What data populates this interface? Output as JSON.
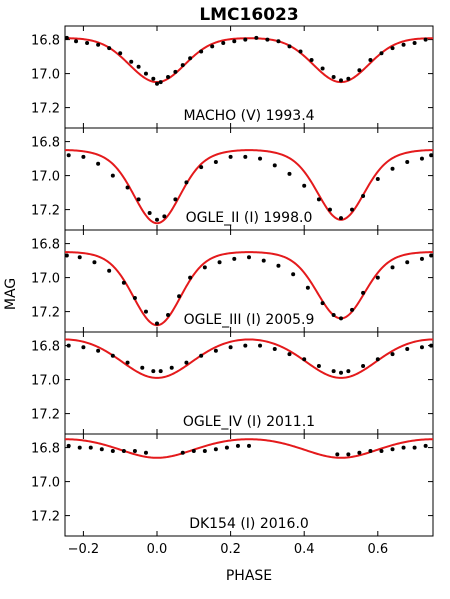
{
  "figure": {
    "title": "LMC16023",
    "xlabel": "PHASE",
    "ylabel": "MAG"
  },
  "chart_data": {
    "type": "scatter",
    "title": "LMC16023",
    "xlabel": "PHASE",
    "ylabel": "MAG",
    "xlim": [
      -0.25,
      0.75
    ],
    "ylim": [
      17.32,
      16.72
    ],
    "y_inverted": true,
    "x_ticks": [
      -0.2,
      0.0,
      0.2,
      0.4,
      0.6
    ],
    "x_tick_labels": [
      "−0.2",
      "0.0",
      "0.2",
      "0.4",
      "0.6"
    ],
    "y_ticks": [
      16.8,
      17.0,
      17.2
    ],
    "y_tick_labels": [
      "16.8",
      "17.0",
      "17.2"
    ],
    "model_color": "#e41a1c",
    "point_color": "#000000",
    "panels": [
      {
        "label": "MACHO (V) 1993.4",
        "model": {
          "base": 16.79,
          "primary_depth": 0.26,
          "secondary_depth": 0.26,
          "width": 0.075,
          "ellipsoidal": 0.0
        },
        "observations": [
          [
            -0.245,
            16.79
          ],
          [
            -0.22,
            16.81
          ],
          [
            -0.19,
            16.82
          ],
          [
            -0.16,
            16.83
          ],
          [
            -0.13,
            16.85
          ],
          [
            -0.1,
            16.88
          ],
          [
            -0.07,
            16.93
          ],
          [
            -0.05,
            16.96
          ],
          [
            -0.03,
            17.0
          ],
          [
            -0.01,
            17.03
          ],
          [
            0.0,
            17.06
          ],
          [
            0.01,
            17.05
          ],
          [
            0.03,
            17.02
          ],
          [
            0.05,
            16.99
          ],
          [
            0.07,
            16.95
          ],
          [
            0.09,
            16.91
          ],
          [
            0.12,
            16.87
          ],
          [
            0.15,
            16.84
          ],
          [
            0.18,
            16.82
          ],
          [
            0.21,
            16.81
          ],
          [
            0.24,
            16.8
          ],
          [
            0.27,
            16.79
          ],
          [
            0.3,
            16.8
          ],
          [
            0.33,
            16.81
          ],
          [
            0.36,
            16.84
          ],
          [
            0.39,
            16.87
          ],
          [
            0.42,
            16.92
          ],
          [
            0.45,
            16.97
          ],
          [
            0.48,
            17.02
          ],
          [
            0.5,
            17.04
          ],
          [
            0.52,
            17.03
          ],
          [
            0.55,
            16.98
          ],
          [
            0.58,
            16.92
          ],
          [
            0.61,
            16.88
          ],
          [
            0.64,
            16.85
          ],
          [
            0.67,
            16.83
          ],
          [
            0.7,
            16.82
          ],
          [
            0.73,
            16.8
          ]
        ]
      },
      {
        "label": "OGLE_II (I) 1998.0",
        "model": {
          "base": 16.88,
          "primary_depth": 0.37,
          "secondary_depth": 0.35,
          "width": 0.06,
          "ellipsoidal": 0.03
        },
        "observations": [
          [
            -0.24,
            16.88
          ],
          [
            -0.2,
            16.89
          ],
          [
            -0.16,
            16.93
          ],
          [
            -0.12,
            17.0
          ],
          [
            -0.08,
            17.07
          ],
          [
            -0.05,
            17.14
          ],
          [
            -0.02,
            17.22
          ],
          [
            0.0,
            17.26
          ],
          [
            0.02,
            17.24
          ],
          [
            0.05,
            17.14
          ],
          [
            0.08,
            17.04
          ],
          [
            0.12,
            16.95
          ],
          [
            0.16,
            16.92
          ],
          [
            0.2,
            16.89
          ],
          [
            0.24,
            16.89
          ],
          [
            0.28,
            16.9
          ],
          [
            0.32,
            16.94
          ],
          [
            0.36,
            16.99
          ],
          [
            0.4,
            17.06
          ],
          [
            0.44,
            17.14
          ],
          [
            0.47,
            17.2
          ],
          [
            0.5,
            17.25
          ],
          [
            0.53,
            17.2
          ],
          [
            0.56,
            17.12
          ],
          [
            0.6,
            17.02
          ],
          [
            0.64,
            16.96
          ],
          [
            0.68,
            16.92
          ],
          [
            0.72,
            16.9
          ],
          [
            0.745,
            16.88
          ]
        ]
      },
      {
        "label": "OGLE_III (I) 2005.9",
        "model": {
          "base": 16.87,
          "primary_depth": 0.39,
          "secondary_depth": 0.35,
          "width": 0.062,
          "ellipsoidal": 0.02
        },
        "observations": [
          [
            -0.245,
            16.87
          ],
          [
            -0.21,
            16.88
          ],
          [
            -0.17,
            16.91
          ],
          [
            -0.13,
            16.96
          ],
          [
            -0.09,
            17.03
          ],
          [
            -0.06,
            17.12
          ],
          [
            -0.03,
            17.2
          ],
          [
            0.0,
            17.27
          ],
          [
            0.03,
            17.22
          ],
          [
            0.06,
            17.11
          ],
          [
            0.09,
            17.0
          ],
          [
            0.13,
            16.94
          ],
          [
            0.17,
            16.91
          ],
          [
            0.21,
            16.89
          ],
          [
            0.25,
            16.88
          ],
          [
            0.29,
            16.9
          ],
          [
            0.33,
            16.93
          ],
          [
            0.37,
            16.98
          ],
          [
            0.41,
            17.06
          ],
          [
            0.45,
            17.15
          ],
          [
            0.48,
            17.22
          ],
          [
            0.5,
            17.24
          ],
          [
            0.53,
            17.19
          ],
          [
            0.56,
            17.09
          ],
          [
            0.6,
            17.0
          ],
          [
            0.64,
            16.94
          ],
          [
            0.68,
            16.91
          ],
          [
            0.72,
            16.89
          ],
          [
            0.745,
            16.87
          ]
        ]
      },
      {
        "label": "OGLE_IV (I) 2011.1",
        "model": {
          "base": 16.8,
          "primary_depth": 0.15,
          "secondary_depth": 0.15,
          "width": 0.085,
          "ellipsoidal": 0.04
        },
        "observations": [
          [
            -0.24,
            16.8
          ],
          [
            -0.2,
            16.81
          ],
          [
            -0.16,
            16.83
          ],
          [
            -0.12,
            16.86
          ],
          [
            -0.08,
            16.9
          ],
          [
            -0.04,
            16.93
          ],
          [
            -0.01,
            16.95
          ],
          [
            0.01,
            16.95
          ],
          [
            0.04,
            16.93
          ],
          [
            0.08,
            16.9
          ],
          [
            0.12,
            16.86
          ],
          [
            0.16,
            16.83
          ],
          [
            0.2,
            16.81
          ],
          [
            0.24,
            16.8
          ],
          [
            0.28,
            16.8
          ],
          [
            0.32,
            16.82
          ],
          [
            0.36,
            16.85
          ],
          [
            0.4,
            16.88
          ],
          [
            0.44,
            16.92
          ],
          [
            0.48,
            16.95
          ],
          [
            0.5,
            16.96
          ],
          [
            0.52,
            16.95
          ],
          [
            0.56,
            16.92
          ],
          [
            0.6,
            16.88
          ],
          [
            0.64,
            16.85
          ],
          [
            0.68,
            16.82
          ],
          [
            0.72,
            16.81
          ],
          [
            0.745,
            16.8
          ]
        ]
      },
      {
        "label": "DK154 (I) 2016.0",
        "model": {
          "base": 16.78,
          "primary_depth": 0.05,
          "secondary_depth": 0.05,
          "width": 0.08,
          "ellipsoidal": 0.03
        },
        "observations": [
          [
            -0.24,
            16.79
          ],
          [
            -0.21,
            16.8
          ],
          [
            -0.18,
            16.8
          ],
          [
            -0.15,
            16.81
          ],
          [
            -0.12,
            16.82
          ],
          [
            -0.09,
            16.82
          ],
          [
            -0.06,
            16.82
          ],
          [
            -0.03,
            16.83
          ],
          [
            0.07,
            16.83
          ],
          [
            0.1,
            16.82
          ],
          [
            0.13,
            16.82
          ],
          [
            0.16,
            16.81
          ],
          [
            0.19,
            16.8
          ],
          [
            0.22,
            16.79
          ],
          [
            0.25,
            16.79
          ],
          [
            0.49,
            16.84
          ],
          [
            0.52,
            16.84
          ],
          [
            0.55,
            16.83
          ],
          [
            0.58,
            16.82
          ],
          [
            0.61,
            16.82
          ],
          [
            0.64,
            16.81
          ],
          [
            0.67,
            16.8
          ],
          [
            0.7,
            16.8
          ],
          [
            0.73,
            16.79
          ]
        ]
      }
    ]
  }
}
